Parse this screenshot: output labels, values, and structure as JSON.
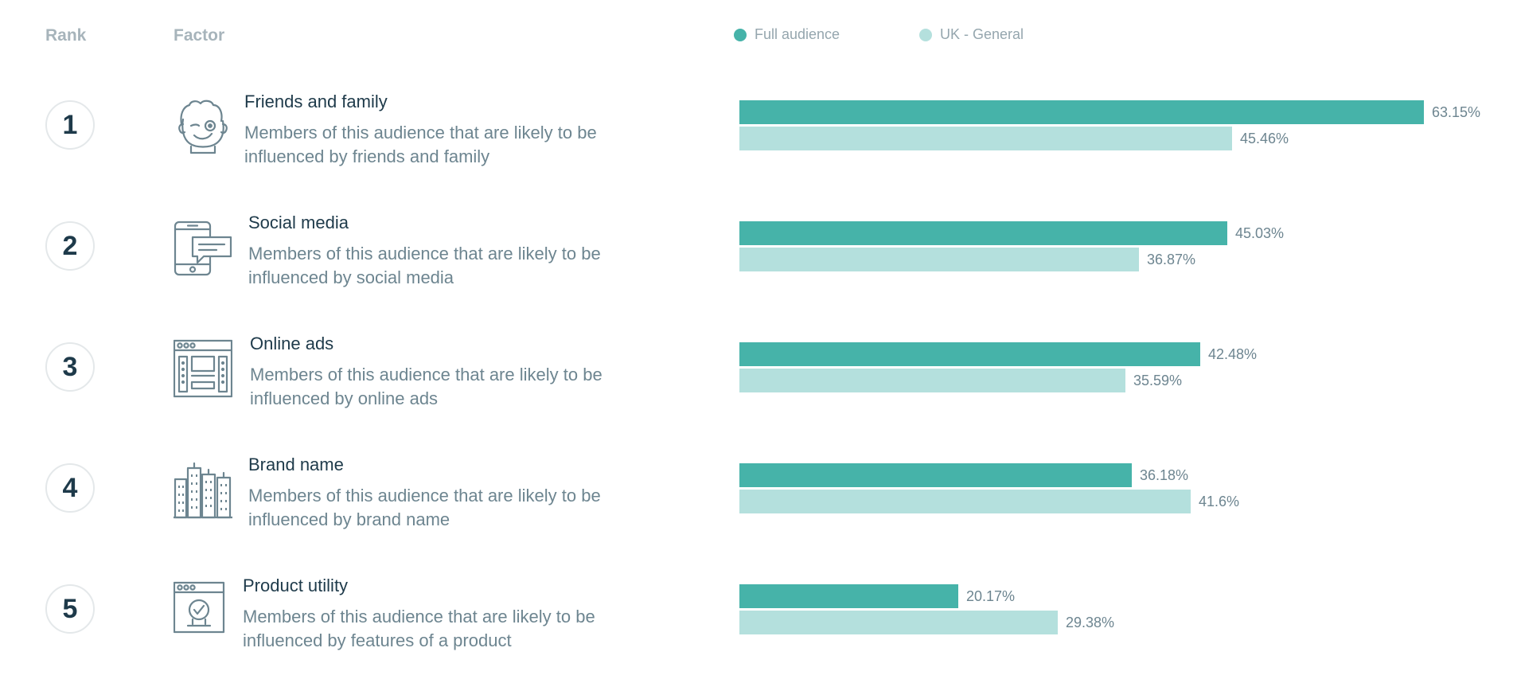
{
  "headers": {
    "rank": "Rank",
    "factor": "Factor"
  },
  "legend": [
    {
      "name": "Full audience",
      "color": "#46b3a9"
    },
    {
      "name": "UK - General",
      "color": "#b4e0dd"
    }
  ],
  "chart_data": {
    "type": "bar",
    "orientation": "horizontal",
    "categories": [
      "Friends and family",
      "Social media",
      "Online ads",
      "Brand name",
      "Product utility"
    ],
    "series": [
      {
        "name": "Full audience",
        "values": [
          63.15,
          45.03,
          42.48,
          36.18,
          20.17
        ],
        "labels": [
          "63.15%",
          "45.03%",
          "42.48%",
          "36.18%",
          "20.17%"
        ]
      },
      {
        "name": "UK - General",
        "values": [
          45.46,
          36.87,
          35.59,
          41.6,
          29.38
        ],
        "labels": [
          "45.46%",
          "36.87%",
          "35.59%",
          "41.6%",
          "29.38%"
        ]
      }
    ],
    "xlim": [
      0,
      63.15
    ],
    "grid": false,
    "legend_position": "top"
  },
  "rows": [
    {
      "rank": "1",
      "icon": "winking-face-icon",
      "title": "Friends and family",
      "description": "Members of this audience that are likely to be influenced by friends and family"
    },
    {
      "rank": "2",
      "icon": "smartphone-chat-icon",
      "title": "Social media",
      "description": "Members of this audience that are likely to be influenced by social media"
    },
    {
      "rank": "3",
      "icon": "browser-ad-icon",
      "title": "Online ads",
      "description": "Members of this audience that are likely to be influenced by online ads"
    },
    {
      "rank": "4",
      "icon": "city-buildings-icon",
      "title": "Brand name",
      "description": "Members of this audience that are likely to be influenced by brand name"
    },
    {
      "rank": "5",
      "icon": "browser-checkmark-icon",
      "title": "Product utility",
      "description": "Members of this audience that are likely to be influenced by features of a product"
    }
  ]
}
